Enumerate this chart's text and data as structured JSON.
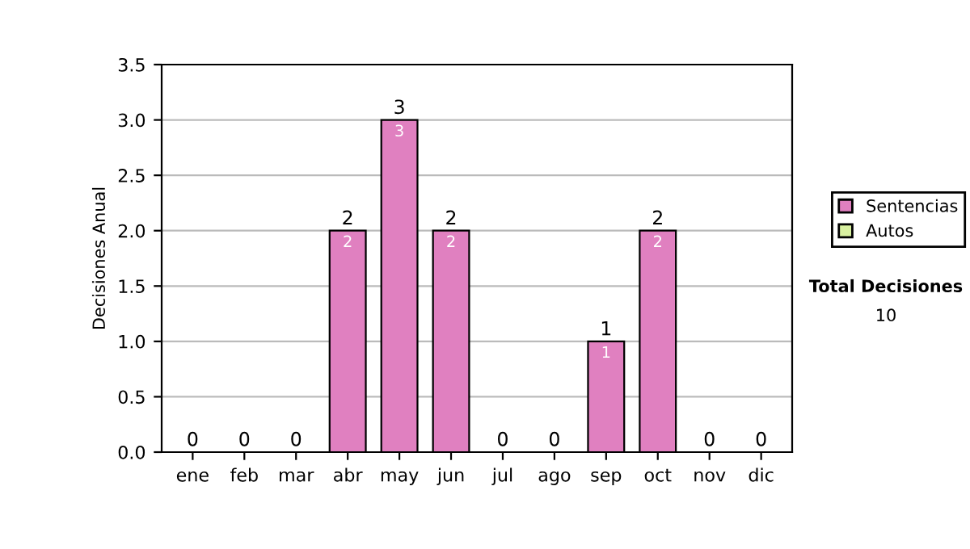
{
  "chart_data": {
    "type": "bar",
    "stacked": true,
    "ylabel": "Decisiones Anual",
    "categories": [
      "ene",
      "feb",
      "mar",
      "abr",
      "may",
      "jun",
      "jul",
      "ago",
      "sep",
      "oct",
      "nov",
      "dic"
    ],
    "series": [
      {
        "name": "Sentencias",
        "color": "#e080c0",
        "values": [
          0,
          0,
          0,
          2,
          3,
          2,
          0,
          0,
          1,
          2,
          0,
          0
        ],
        "value_labels": [
          null,
          null,
          null,
          "2",
          "3",
          "2",
          null,
          null,
          "1",
          "2",
          null,
          null
        ]
      },
      {
        "name": "Autos",
        "color": "#d8f0a0",
        "values": [
          0,
          0,
          0,
          0,
          0,
          0,
          0,
          0,
          0,
          0,
          0,
          0
        ]
      }
    ],
    "totals": [
      "0",
      "0",
      "0",
      "2",
      "3",
      "2",
      "0",
      "0",
      "1",
      "2",
      "0",
      "0"
    ],
    "ylim": [
      0,
      3.5
    ],
    "yticks": [
      "0.0",
      "0.5",
      "1.0",
      "1.5",
      "2.0",
      "2.5",
      "3.0",
      "3.5"
    ],
    "grid": "y",
    "legend": "right",
    "annotations": [
      "Total Decisiones",
      "10"
    ]
  }
}
